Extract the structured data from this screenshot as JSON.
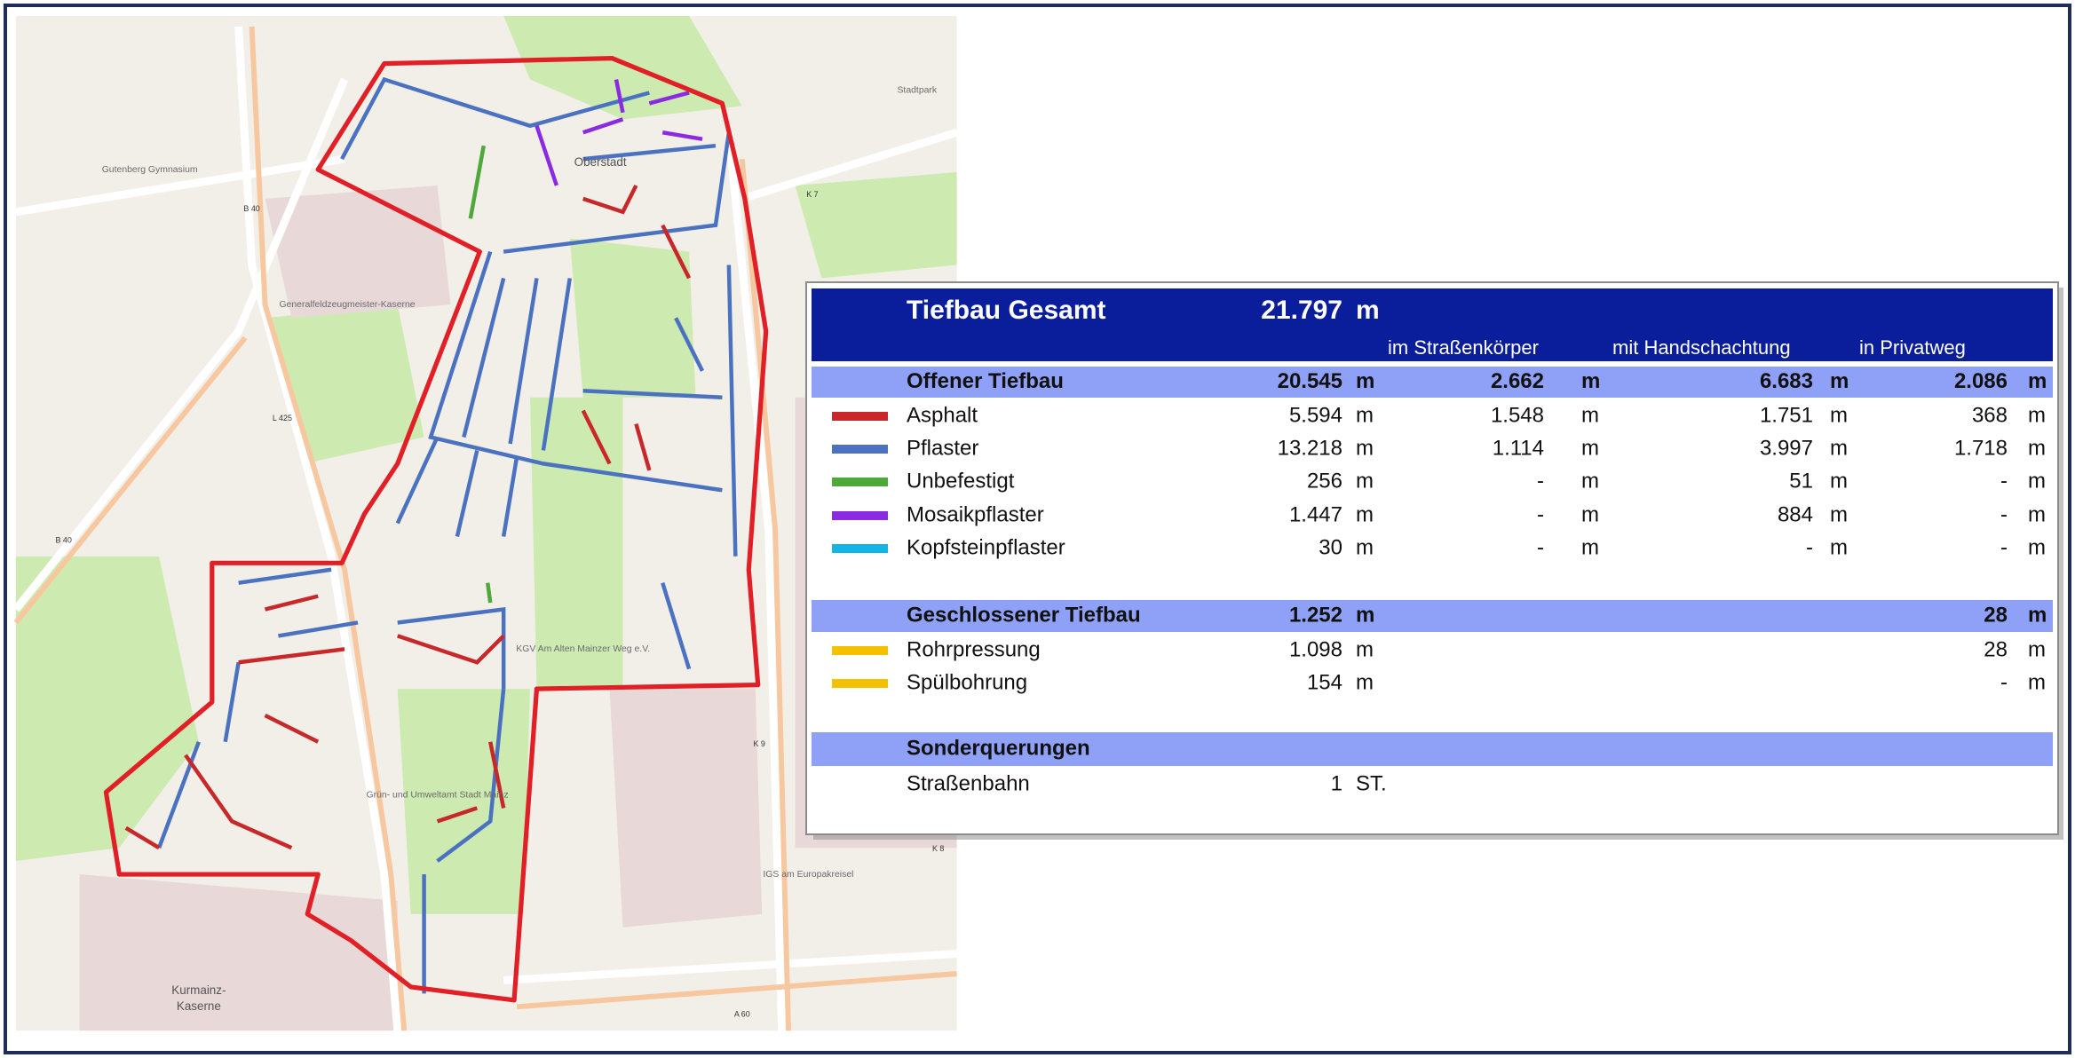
{
  "map": {
    "labels": [
      "Oberstadt",
      "Stadtpark",
      "Kurmainz-",
      "Kaserne",
      "B 40",
      "B 40",
      "L 425",
      "K 7",
      "K 9",
      "K 8",
      "A 60",
      "Gutenberg Gymnasium",
      "Generalfeldzeugmeister-Kaserne",
      "IGS am Europakreisel",
      "Grün- und Umweltamt Stadt Mainz",
      "KGV Am Alten Mainzer Weg e.V."
    ]
  },
  "table": {
    "title": "Tiefbau Gesamt",
    "total": "21.797",
    "unit": "m",
    "columns": [
      "im Straßenkörper",
      "mit Handschachtung",
      "in Privatweg"
    ],
    "sections": [
      {
        "label": "Offener Tiefbau",
        "values": [
          {
            "value": "20.545",
            "unit": "m"
          },
          {
            "value": "2.662",
            "unit": "m"
          },
          {
            "value": "6.683",
            "unit": "m"
          },
          {
            "value": "2.086",
            "unit": "m"
          }
        ],
        "rows": [
          {
            "label": "Asphalt",
            "color": "#c8282a",
            "values": [
              {
                "value": "5.594",
                "unit": "m"
              },
              {
                "value": "1.548",
                "unit": "m"
              },
              {
                "value": "1.751",
                "unit": "m"
              },
              {
                "value": "368",
                "unit": "m"
              }
            ]
          },
          {
            "label": "Pflaster",
            "color": "#4a72c0",
            "values": [
              {
                "value": "13.218",
                "unit": "m"
              },
              {
                "value": "1.114",
                "unit": "m"
              },
              {
                "value": "3.997",
                "unit": "m"
              },
              {
                "value": "1.718",
                "unit": "m"
              }
            ]
          },
          {
            "label": "Unbefestigt",
            "color": "#4ea83a",
            "values": [
              {
                "value": "256",
                "unit": "m"
              },
              {
                "value": "-",
                "unit": "m"
              },
              {
                "value": "51",
                "unit": "m"
              },
              {
                "value": "-",
                "unit": "m"
              }
            ]
          },
          {
            "label": "Mosaikpflaster",
            "color": "#8a2be2",
            "values": [
              {
                "value": "1.447",
                "unit": "m"
              },
              {
                "value": "-",
                "unit": "m"
              },
              {
                "value": "884",
                "unit": "m"
              },
              {
                "value": "-",
                "unit": "m"
              }
            ]
          },
          {
            "label": "Kopfsteinpflaster",
            "color": "#14b4e6",
            "values": [
              {
                "value": "30",
                "unit": "m"
              },
              {
                "value": "-",
                "unit": "m"
              },
              {
                "value": "-",
                "unit": "m"
              },
              {
                "value": "-",
                "unit": "m"
              }
            ]
          }
        ]
      },
      {
        "label": "Geschlossener Tiefbau",
        "values": [
          {
            "value": "1.252",
            "unit": "m"
          },
          null,
          null,
          {
            "value": "28",
            "unit": "m"
          }
        ],
        "rows": [
          {
            "label": "Rohrpressung",
            "color": "#f5c000",
            "values": [
              {
                "value": "1.098",
                "unit": "m"
              },
              null,
              null,
              {
                "value": "28",
                "unit": "m"
              }
            ]
          },
          {
            "label": "Spülbohrung",
            "color": "#f5c000",
            "values": [
              {
                "value": "154",
                "unit": "m"
              },
              null,
              null,
              {
                "value": "-",
                "unit": "m"
              }
            ]
          }
        ]
      },
      {
        "label": "Sonderquerungen",
        "rows": [
          {
            "label": "Straßenbahn",
            "values": [
              {
                "value": "1",
                "unit": "ST."
              },
              null,
              null,
              null
            ]
          }
        ]
      }
    ]
  }
}
